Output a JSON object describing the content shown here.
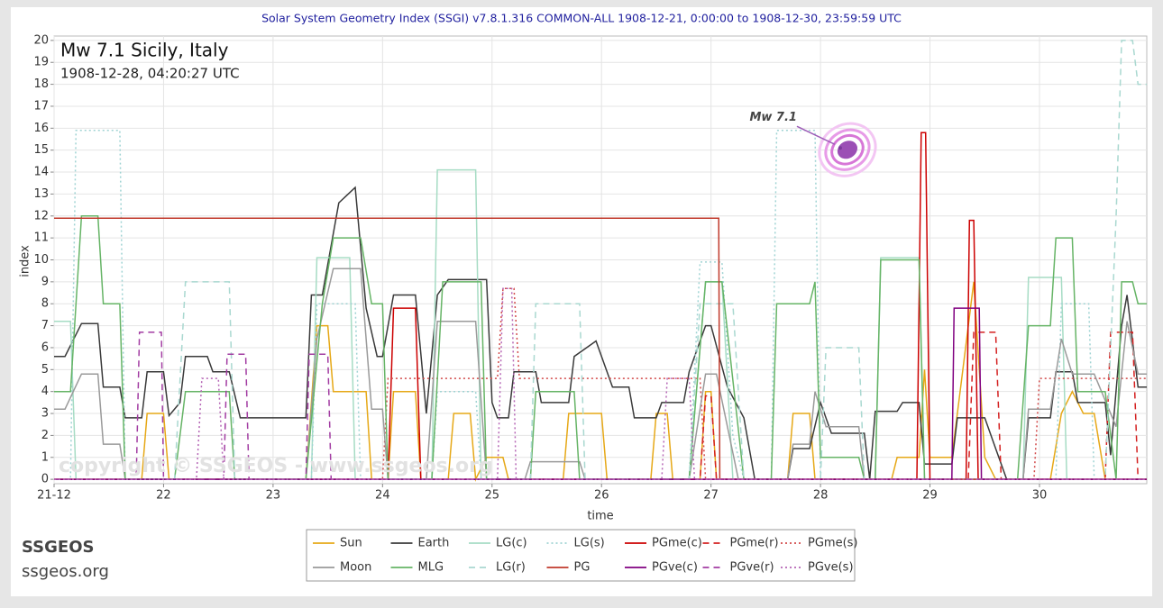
{
  "header": "Solar System Geometry Index (SSGI) v7.8.1.316 COMMON-ALL 1908-12-21,  0:00:00 to 1908-12-30, 23:59:59 UTC",
  "footer": {
    "brand": "SSGEOS",
    "site": "ssgeos.org"
  },
  "chart_data": {
    "type": "line",
    "title": "Mw 7.1 Sicily, Italy",
    "subtitle": "1908-12-28, 04:20:27 UTC",
    "watermark": "copyright © SSGEOS - www.ssgeos.org",
    "xlabel": "time",
    "ylabel": "index",
    "xlim": [
      21,
      30.98
    ],
    "ylim": [
      -0.2,
      20.2
    ],
    "xticks": [
      {
        "value": 21,
        "label": "21-12"
      },
      22,
      23,
      24,
      25,
      26,
      27,
      28,
      29,
      30
    ],
    "yticks": [
      0,
      1,
      2,
      3,
      4,
      5,
      6,
      7,
      8,
      9,
      10,
      11,
      12,
      13,
      14,
      15,
      16,
      17,
      18,
      19,
      20
    ],
    "grid": true,
    "event": {
      "label": "Mw 7.1",
      "x": 28.18,
      "y": 15.1
    },
    "series": [
      {
        "name": "Sun",
        "color": "#e6a817",
        "dash": "solid",
        "x": [
          21,
          21.8,
          21.85,
          22.0,
          22.05,
          23.3,
          23.4,
          23.5,
          23.55,
          23.85,
          23.9,
          24.05,
          24.1,
          24.3,
          24.35,
          24.6,
          24.65,
          24.8,
          24.85,
          24.95,
          25.1,
          25.15,
          25.65,
          25.7,
          26.0,
          26.05,
          26.45,
          26.5,
          26.6,
          26.65,
          26.9,
          26.95,
          27.0,
          27.05,
          27.7,
          27.75,
          27.9,
          27.95,
          28.65,
          28.7,
          28.9,
          28.95,
          29.0,
          29.2,
          29.3,
          29.4,
          29.5,
          29.6,
          30.1,
          30.2,
          30.3,
          30.4,
          30.5,
          30.6,
          30.98
        ],
        "values": [
          0,
          0,
          3,
          3,
          0,
          0,
          7,
          7,
          4,
          4,
          0,
          0,
          4,
          4,
          0,
          0,
          3,
          3,
          0,
          1,
          1,
          0,
          0,
          3,
          3,
          0,
          0,
          3,
          3,
          0,
          0,
          4,
          4,
          0,
          0,
          3,
          3,
          0,
          0,
          1,
          1,
          5,
          1,
          1,
          5,
          9,
          1,
          0,
          0,
          3,
          4,
          3,
          3,
          0,
          0
        ]
      },
      {
        "name": "Earth",
        "color": "#3a3a3a",
        "dash": "solid",
        "x": [
          21,
          21.1,
          21.25,
          21.4,
          21.45,
          21.6,
          21.65,
          21.8,
          21.85,
          22.0,
          22.05,
          22.15,
          22.2,
          22.4,
          22.45,
          22.6,
          22.7,
          23.3,
          23.35,
          23.45,
          23.6,
          23.75,
          23.85,
          23.95,
          24.0,
          24.1,
          24.3,
          24.4,
          24.5,
          24.6,
          24.95,
          25.0,
          25.05,
          25.15,
          25.2,
          25.4,
          25.45,
          25.7,
          25.75,
          25.95,
          26.1,
          26.25,
          26.3,
          26.5,
          26.55,
          26.75,
          26.8,
          26.95,
          27.0,
          27.15,
          27.3,
          27.4,
          27.7,
          27.75,
          27.9,
          28.0,
          28.1,
          28.4,
          28.45,
          28.5,
          28.7,
          28.75,
          28.9,
          28.95,
          29.2,
          29.25,
          29.5,
          29.6,
          29.7,
          29.85,
          29.9,
          30.1,
          30.15,
          30.3,
          30.35,
          30.6,
          30.65,
          30.75,
          30.8,
          30.9,
          30.98
        ],
        "values": [
          5.6,
          5.6,
          7.1,
          7.1,
          4.2,
          4.2,
          2.8,
          2.8,
          4.9,
          4.9,
          2.9,
          3.5,
          5.6,
          5.6,
          4.9,
          4.9,
          2.8,
          2.8,
          8.4,
          8.4,
          12.6,
          13.3,
          7.8,
          5.6,
          5.6,
          8.4,
          8.4,
          3.0,
          8.4,
          9.1,
          9.1,
          3.5,
          2.8,
          2.8,
          4.9,
          4.9,
          3.5,
          3.5,
          5.6,
          6.3,
          4.2,
          4.2,
          2.8,
          2.8,
          3.5,
          3.5,
          4.9,
          7.0,
          7.0,
          4.2,
          2.8,
          0,
          0,
          1.4,
          1.4,
          3.5,
          2.1,
          2.1,
          0,
          3.1,
          3.1,
          3.5,
          3.5,
          0.7,
          0.7,
          2.8,
          2.8,
          1.4,
          0,
          0,
          2.8,
          2.8,
          4.9,
          4.9,
          3.5,
          3.5,
          1.1,
          7.0,
          8.4,
          4.2,
          4.2
        ]
      },
      {
        "name": "LG(c)",
        "color": "#a6dcc4",
        "dash": "solid",
        "x": [
          21,
          21.15,
          21.2,
          23.35,
          23.4,
          23.7,
          23.75,
          24.45,
          24.5,
          24.85,
          24.9,
          26.8,
          26.95,
          27.1,
          27.2,
          28.5,
          28.55,
          28.9,
          28.95,
          29.85,
          29.9,
          30.2,
          30.25,
          30.98
        ],
        "values": [
          7.2,
          7.2,
          0,
          0,
          10.1,
          10.1,
          0,
          0,
          14.1,
          14.1,
          0,
          0,
          9,
          9,
          0,
          0,
          10.1,
          10.1,
          0,
          0,
          9.2,
          9.2,
          0,
          0
        ]
      },
      {
        "name": "LG(s)",
        "color": "#9fd3d3",
        "dash": "dotted",
        "x": [
          21,
          21.15,
          21.2,
          21.6,
          21.65,
          23.35,
          23.4,
          23.75,
          23.8,
          24.45,
          24.5,
          24.85,
          24.9,
          26.8,
          26.9,
          27.1,
          27.2,
          27.3,
          27.55,
          27.6,
          27.95,
          28.0,
          30.15,
          30.2,
          30.45,
          30.5,
          30.98
        ],
        "values": [
          0,
          0,
          15.9,
          15.9,
          0,
          0,
          8,
          8,
          0,
          0,
          4,
          4,
          0,
          0,
          9.9,
          9.9,
          2,
          0,
          0,
          15.9,
          15.9,
          0,
          0,
          8,
          8,
          0,
          0
        ]
      },
      {
        "name": "PGme(c)",
        "color": "#cc0000",
        "dash": "solid",
        "x": [
          21,
          24.05,
          24.1,
          24.3,
          24.35,
          28.88,
          28.92,
          28.96,
          29.0,
          29.33,
          29.36,
          29.4,
          29.44,
          30.98
        ],
        "values": [
          0,
          0,
          7.8,
          7.8,
          0,
          0,
          15.8,
          15.8,
          0,
          0,
          11.8,
          11.8,
          0,
          0
        ]
      },
      {
        "name": "PGme(r)",
        "color": "#d42020",
        "dash": "dashed",
        "x": [
          21,
          26.9,
          26.95,
          27.0,
          27.05,
          29.35,
          29.4,
          29.6,
          29.65,
          30.6,
          30.65,
          30.85,
          30.9,
          30.98
        ],
        "values": [
          0,
          0,
          3.8,
          3.8,
          0,
          0,
          6.7,
          6.7,
          0,
          0,
          6.7,
          6.7,
          0,
          0
        ]
      },
      {
        "name": "PGme(s)",
        "color": "#d24a4a",
        "dash": "dotted",
        "x": [
          21,
          24.0,
          24.05,
          25.05,
          25.1,
          25.2,
          25.25,
          26.9,
          26.95,
          29.95,
          30.0,
          30.98
        ],
        "values": [
          0,
          0,
          4.6,
          4.6,
          8.7,
          8.7,
          4.6,
          4.6,
          0,
          0,
          4.6,
          4.6
        ]
      },
      {
        "name": "Moon",
        "color": "#9a9a9a",
        "dash": "solid",
        "x": [
          21,
          21.1,
          21.25,
          21.4,
          21.45,
          21.6,
          21.65,
          23.3,
          23.4,
          23.55,
          23.8,
          23.9,
          24.0,
          24.05,
          24.4,
          24.5,
          24.85,
          24.95,
          25.3,
          25.35,
          25.8,
          25.85,
          26.8,
          26.95,
          27.05,
          27.25,
          27.7,
          27.75,
          27.9,
          27.95,
          28.05,
          28.35,
          28.4,
          29.85,
          29.9,
          30.1,
          30.2,
          30.3,
          30.5,
          30.7,
          30.8,
          30.9,
          30.98
        ],
        "values": [
          3.2,
          3.2,
          4.8,
          4.8,
          1.6,
          1.6,
          0,
          0,
          6.4,
          9.6,
          9.6,
          3.2,
          3.2,
          0,
          0,
          7.2,
          7.2,
          0,
          0,
          0.8,
          0.8,
          0,
          0,
          4.8,
          4.8,
          0,
          0,
          1.6,
          1.6,
          4,
          2.4,
          2.4,
          0,
          0,
          3.2,
          3.2,
          6.4,
          4.8,
          4.8,
          2.4,
          7.2,
          4.8,
          4.8
        ]
      },
      {
        "name": "MLG",
        "color": "#66b466",
        "dash": "solid",
        "x": [
          21,
          21.15,
          21.25,
          21.4,
          21.45,
          21.6,
          21.65,
          22.1,
          22.2,
          22.6,
          22.65,
          23.3,
          23.45,
          23.55,
          23.8,
          23.9,
          24.0,
          24.05,
          24.45,
          24.55,
          24.9,
          24.95,
          25.35,
          25.4,
          25.75,
          25.8,
          26.8,
          26.95,
          27.1,
          27.3,
          27.55,
          27.6,
          27.9,
          27.95,
          28.0,
          28.35,
          28.4,
          28.5,
          28.55,
          28.9,
          28.95,
          29.8,
          29.9,
          30.1,
          30.15,
          30.3,
          30.35,
          30.6,
          30.7,
          30.75,
          30.85,
          30.9,
          30.98
        ],
        "values": [
          4,
          4,
          12,
          12,
          8,
          8,
          0,
          0,
          4,
          4,
          0,
          0,
          8,
          11,
          11,
          8,
          8,
          0,
          0,
          9,
          9,
          0,
          0,
          4,
          4,
          0,
          0,
          9,
          9,
          0,
          0,
          8,
          8,
          9,
          1,
          1,
          0,
          0,
          10,
          10,
          0,
          0,
          7,
          7,
          11,
          11,
          4,
          4,
          0,
          9,
          9,
          8,
          8
        ]
      },
      {
        "name": "LG(r)",
        "color": "#a9d8d0",
        "dash": "dashed",
        "x": [
          21,
          22.1,
          22.2,
          22.6,
          22.65,
          25.35,
          25.4,
          25.8,
          25.85,
          26.8,
          26.9,
          27.2,
          27.3,
          28.0,
          28.05,
          28.35,
          28.4,
          30.6,
          30.7,
          30.75,
          30.85,
          30.9,
          30.98
        ],
        "values": [
          0,
          0,
          9,
          9,
          0,
          0,
          8,
          8,
          0,
          0,
          8,
          8,
          0,
          0,
          6,
          6,
          0,
          0,
          12,
          20,
          20,
          18,
          18
        ]
      },
      {
        "name": "PG",
        "color": "#c0392b",
        "dash": "solid",
        "x": [
          21,
          27.07,
          27.08,
          30.98
        ],
        "values": [
          11.9,
          11.9,
          0,
          0
        ]
      },
      {
        "name": "PGve(c)",
        "color": "#800080",
        "dash": "solid",
        "x": [
          21,
          29.2,
          29.22,
          29.45,
          29.47,
          30.98
        ],
        "values": [
          0,
          0,
          7.8,
          7.8,
          0,
          0
        ]
      },
      {
        "name": "PGve(r)",
        "color": "#a23ca2",
        "dash": "dashed",
        "x": [
          21,
          21.75,
          21.78,
          21.98,
          22.0,
          22.55,
          22.58,
          22.75,
          22.78,
          23.3,
          23.33,
          23.5,
          23.53,
          30.98
        ],
        "values": [
          0,
          0,
          6.7,
          6.7,
          0,
          0,
          5.7,
          5.7,
          0,
          0,
          5.7,
          5.7,
          0,
          0
        ]
      },
      {
        "name": "PGve(s)",
        "color": "#b565b5",
        "dash": "dotted",
        "x": [
          21,
          22.3,
          22.35,
          22.5,
          22.55,
          25.05,
          25.1,
          25.18,
          25.22,
          26.55,
          26.6,
          26.8,
          26.85,
          30.98
        ],
        "values": [
          0,
          0,
          4.6,
          4.6,
          0,
          0,
          8.7,
          8.7,
          0,
          0,
          4.6,
          4.6,
          0,
          0
        ]
      }
    ]
  }
}
